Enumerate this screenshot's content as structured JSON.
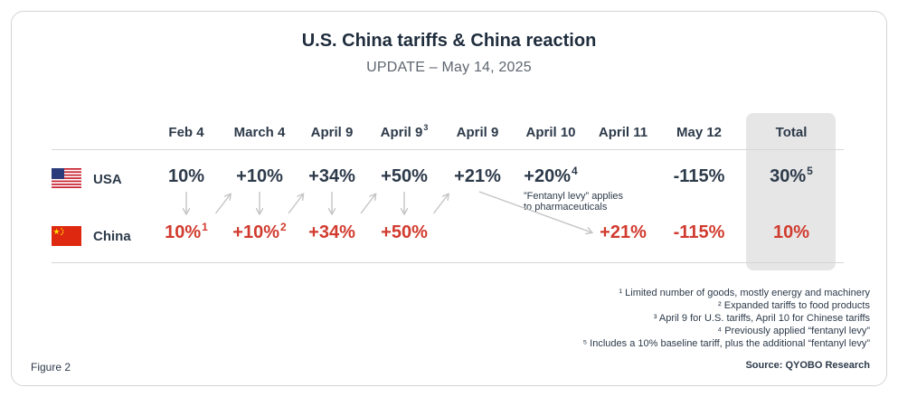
{
  "title": "U.S. China tariffs & China reaction",
  "subtitle": "UPDATE – May 14, 2025",
  "chart_data": {
    "type": "table",
    "columns": [
      {
        "label": "Feb 4",
        "sup": ""
      },
      {
        "label": "March 4",
        "sup": ""
      },
      {
        "label": "April 9",
        "sup": ""
      },
      {
        "label": "April 9",
        "sup": "3"
      },
      {
        "label": "April 9",
        "sup": ""
      },
      {
        "label": "April 10",
        "sup": ""
      },
      {
        "label": "April 11",
        "sup": ""
      },
      {
        "label": "May 12",
        "sup": ""
      },
      {
        "label": "Total",
        "sup": ""
      }
    ],
    "rows": [
      {
        "country": "USA",
        "cells": [
          {
            "text": "10%",
            "sup": ""
          },
          {
            "text": "+10%",
            "sup": ""
          },
          {
            "text": "+34%",
            "sup": ""
          },
          {
            "text": "+50%",
            "sup": ""
          },
          {
            "text": "+21%",
            "sup": ""
          },
          {
            "text": "+20%",
            "sup": "4"
          },
          {
            "text": "",
            "sup": ""
          },
          {
            "text": "-115%",
            "sup": ""
          },
          {
            "text": "30%",
            "sup": "5"
          }
        ],
        "cell_note": "”Fentanyl levy” applies to pharmaceuticals"
      },
      {
        "country": "China",
        "cells": [
          {
            "text": "10%",
            "sup": "1"
          },
          {
            "text": "+10%",
            "sup": "2"
          },
          {
            "text": "+34%",
            "sup": ""
          },
          {
            "text": "+50%",
            "sup": ""
          },
          {
            "text": "",
            "sup": ""
          },
          {
            "text": "",
            "sup": ""
          },
          {
            "text": "+21%",
            "sup": ""
          },
          {
            "text": "-115%",
            "sup": ""
          },
          {
            "text": "10%",
            "sup": ""
          }
        ]
      }
    ]
  },
  "footnotes": [
    "¹ Limited number of goods, mostly energy and machinery",
    "² Expanded tariffs to food products",
    "³ April 9 for U.S. tariffs, April 10 for Chinese tariffs",
    "⁴ Previously applied “fentanyl levy”",
    "⁵ Includes a 10% baseline tariff, plus the additional “fentanyl levy”"
  ],
  "source": "Source: QYOBO Research",
  "figure_label": "Figure 2",
  "colors": {
    "usa_text": "#2d3a4a",
    "china_text": "#d13b2f",
    "total_bg": "#e6e6e6",
    "arrow": "#c4c4c4"
  }
}
